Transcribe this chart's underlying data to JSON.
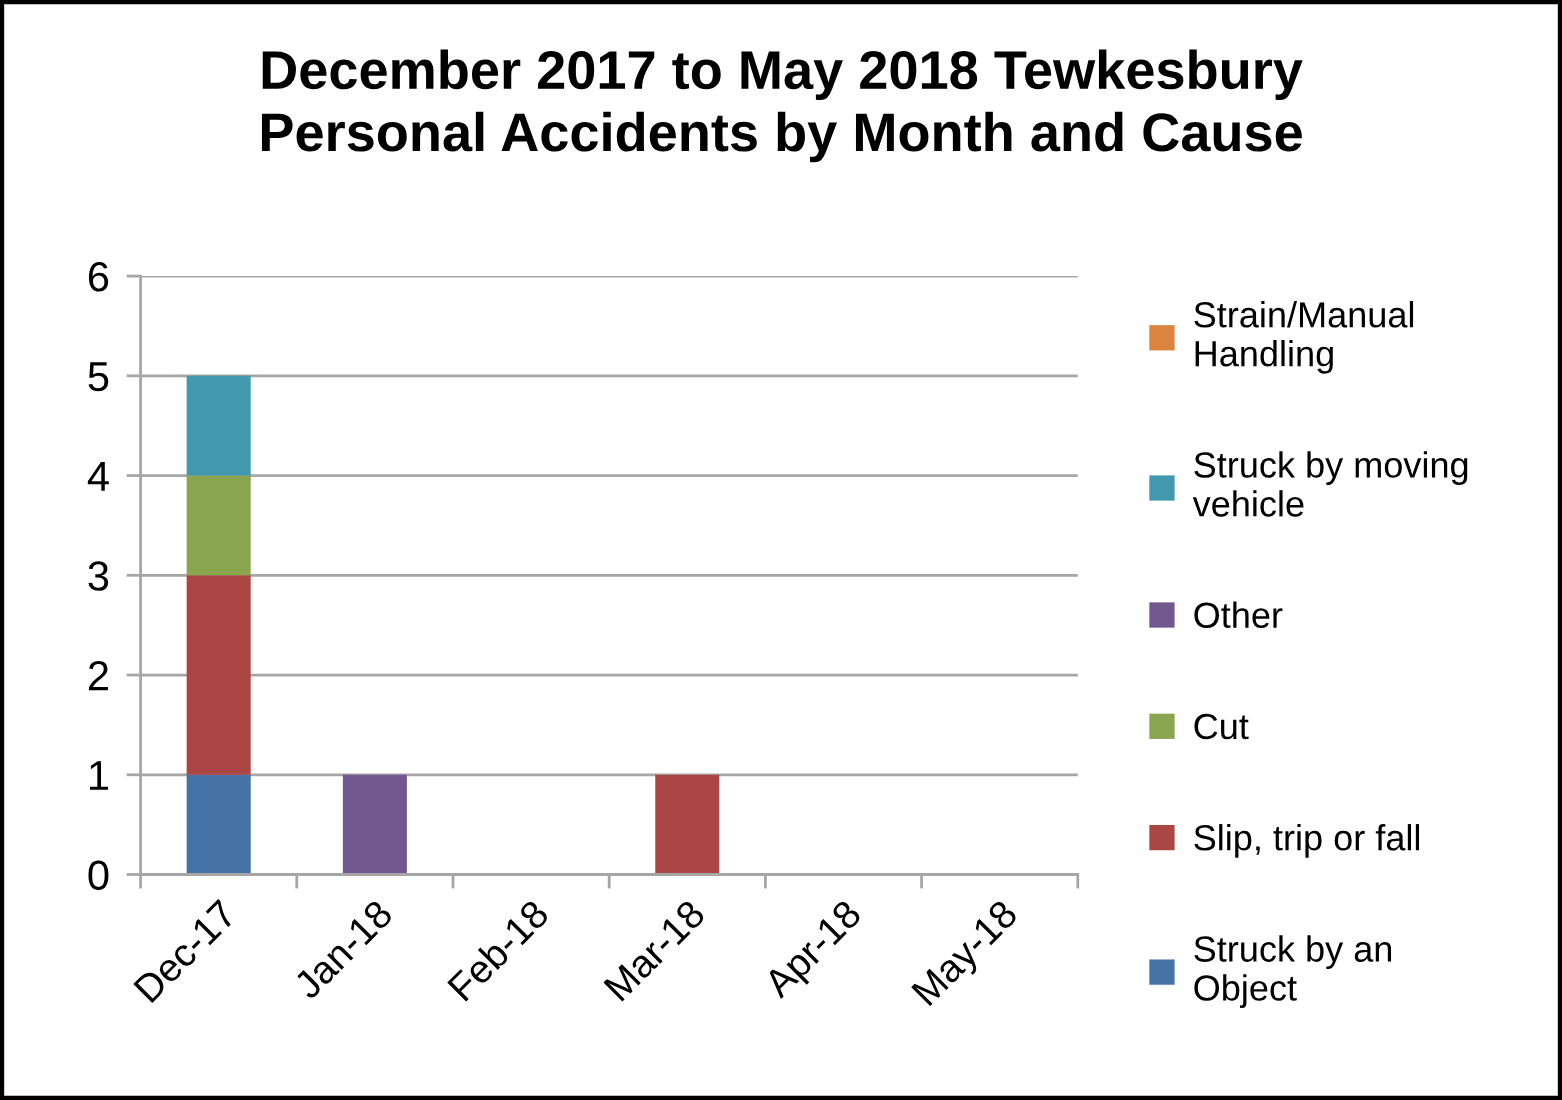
{
  "chart_data": {
    "type": "bar",
    "title": "December 2017 to May 2018 Tewkesbury Personal Accidents by Month and Cause",
    "categories": [
      "Dec-17",
      "Jan-18",
      "Feb-18",
      "Mar-18",
      "Apr-18",
      "May-18"
    ],
    "stacked": true,
    "series": [
      {
        "name": "Struck by an Object",
        "color": "#4572a7",
        "values": [
          1,
          0,
          0,
          0,
          0,
          0
        ]
      },
      {
        "name": "Slip, trip or fall",
        "color": "#aa4643",
        "values": [
          2,
          0,
          0,
          1,
          0,
          0
        ]
      },
      {
        "name": "Cut",
        "color": "#89a54e",
        "values": [
          1,
          0,
          0,
          0,
          0,
          0
        ]
      },
      {
        "name": "Other",
        "color": "#71588f",
        "values": [
          0,
          1,
          0,
          0,
          0,
          0
        ]
      },
      {
        "name": "Struck by moving vehicle",
        "color": "#4198af",
        "values": [
          1,
          0,
          0,
          0,
          0,
          0
        ]
      },
      {
        "name": "Strain/Manual Handling",
        "color": "#db843d",
        "values": [
          0,
          0,
          0,
          0,
          0,
          0
        ]
      }
    ],
    "ylim": [
      0,
      6
    ],
    "yticks": [
      0,
      1,
      2,
      3,
      4,
      5,
      6
    ],
    "grid": "y",
    "legend": "right"
  }
}
